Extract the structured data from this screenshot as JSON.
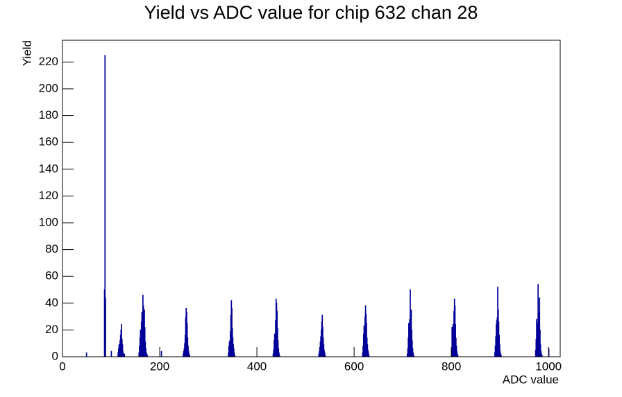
{
  "chart_data": {
    "type": "histogram",
    "title": "Yield vs ADC value for chip 632 chan 28",
    "x_label": "ADC value",
    "y_label": "Yield",
    "color": "#000099",
    "bins": [
      0,
      49,
      50,
      86,
      87,
      88,
      89,
      100,
      101,
      114,
      115,
      116,
      117,
      118,
      119,
      120,
      121,
      122,
      123,
      124,
      125,
      126,
      127,
      128,
      157,
      158,
      159,
      160,
      161,
      162,
      163,
      164,
      165,
      166,
      167,
      168,
      169,
      170,
      171,
      172,
      173,
      174,
      175,
      203,
      204,
      248,
      249,
      250,
      251,
      252,
      253,
      254,
      255,
      256,
      257,
      258,
      259,
      260,
      261,
      262,
      341,
      342,
      343,
      344,
      345,
      346,
      347,
      348,
      349,
      350,
      351,
      352,
      353,
      354,
      355,
      433,
      434,
      435,
      436,
      437,
      438,
      439,
      440,
      441,
      442,
      443,
      444,
      445,
      446,
      447,
      527,
      528,
      529,
      530,
      531,
      532,
      533,
      534,
      535,
      536,
      537,
      538,
      539,
      540,
      541,
      617,
      618,
      619,
      620,
      621,
      622,
      623,
      624,
      625,
      626,
      627,
      628,
      629,
      630,
      631,
      709,
      710,
      711,
      712,
      713,
      714,
      715,
      716,
      717,
      718,
      719,
      720,
      721,
      722,
      723,
      800,
      801,
      802,
      803,
      804,
      805,
      806,
      807,
      808,
      809,
      810,
      811,
      812,
      813,
      814,
      889,
      890,
      891,
      892,
      893,
      894,
      895,
      896,
      897,
      898,
      899,
      900,
      901,
      902,
      903,
      973,
      974,
      975,
      976,
      977,
      978,
      979,
      980,
      981,
      982,
      983,
      984,
      985,
      986,
      987,
      1000,
      1001,
      1024
    ],
    "counts": [
      0,
      3,
      0,
      50,
      225,
      44,
      0,
      4,
      0,
      3,
      6,
      9,
      7,
      12,
      16,
      20,
      24,
      13,
      9,
      4,
      2,
      0,
      2,
      0,
      3,
      8,
      14,
      20,
      12,
      26,
      33,
      29,
      46,
      38,
      27,
      35,
      22,
      11,
      6,
      3,
      2,
      1,
      0,
      4,
      0,
      2,
      4,
      6,
      10,
      16,
      29,
      36,
      33,
      25,
      14,
      8,
      4,
      2,
      1,
      0,
      3,
      8,
      11,
      12,
      19,
      31,
      42,
      36,
      21,
      14,
      9,
      6,
      3,
      1,
      0,
      2,
      5,
      12,
      17,
      9,
      27,
      43,
      40,
      34,
      21,
      12,
      6,
      3,
      1,
      0,
      2,
      4,
      7,
      11,
      15,
      20,
      26,
      31,
      22,
      14,
      9,
      5,
      3,
      1,
      0,
      3,
      8,
      17,
      23,
      20,
      30,
      38,
      32,
      25,
      14,
      9,
      5,
      3,
      1,
      0,
      2,
      6,
      14,
      25,
      19,
      28,
      50,
      31,
      35,
      20,
      12,
      6,
      3,
      1,
      0,
      5,
      22,
      17,
      24,
      10,
      34,
      43,
      38,
      24,
      14,
      8,
      4,
      2,
      1,
      0,
      3,
      8,
      15,
      24,
      27,
      29,
      52,
      35,
      26,
      16,
      9,
      4,
      2,
      1,
      0,
      5,
      13,
      28,
      19,
      25,
      54,
      12,
      33,
      44,
      20,
      9,
      4,
      2,
      1,
      0,
      6,
      0
    ],
    "xlim": [
      0,
      1024
    ],
    "xticks": [
      0,
      200,
      400,
      600,
      800,
      1000
    ],
    "ylim": [
      0,
      236.25
    ],
    "yticks": [
      0,
      20,
      40,
      60,
      80,
      100,
      120,
      140,
      160,
      180,
      200,
      220
    ]
  }
}
